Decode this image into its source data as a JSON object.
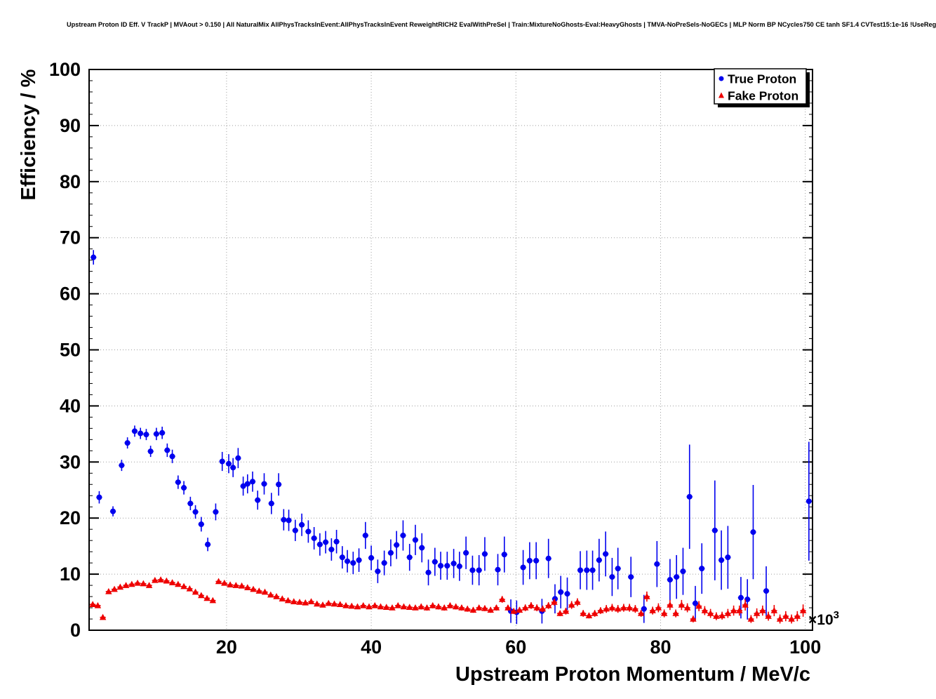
{
  "title": "Upstream Proton ID Eff. V TrackP | MVAout > 0.150 | All NaturalMix AllPhysTracksInEvent:AllPhysTracksInEvent ReweightRICH2 EvalWithPreSel | Train:MixtureNoGhosts-Eval:HeavyGhosts | TMVA-NoPreSels-NoGECs | MLP Norm BP NCycles750 CE tanh SF1.4 CVTest15:1e-16 !UseReg",
  "chart_data": {
    "type": "scatter",
    "title": "Upstream Proton ID Eff. V TrackP | MVAout > 0.150 | All NaturalMix AllPhysTracksInEvent:AllPhysTracksInEvent ReweightRICH2 EvalWithPreSel | Train:MixtureNoGhosts-Eval:HeavyGhosts | TMVA-NoPreSels-NoGECs | MLP Norm BP NCycles750 CE tanh SF1.4 CVTest15:1e-16 !UseReg",
    "xlabel": "Upstream Proton Momentum / MeV/c",
    "ylabel": "Efficiency / %",
    "x_multiplier": "×10",
    "x_multiplier_exponent": "3",
    "x_units_note": "x values in units of 10^3 MeV/c",
    "xlim": [
      1,
      101
    ],
    "ylim": [
      0,
      100
    ],
    "x_major_ticks": [
      20,
      40,
      60,
      80,
      100
    ],
    "x_mid_step": 10,
    "x_minor_step": 2,
    "y_major_ticks": [
      0,
      10,
      20,
      30,
      40,
      50,
      60,
      70,
      80,
      90,
      100
    ],
    "y_minor_step": 2,
    "grid": true,
    "grid_style": "dotted",
    "legend_position": "top-right",
    "frame_color": "#000000",
    "series": [
      {
        "name": "True Proton",
        "color": "#0000ee",
        "marker": "circle",
        "points": [
          [
            1.6,
            66.5,
            1.3
          ],
          [
            2.4,
            23.7,
            1.1
          ],
          [
            4.3,
            21.2,
            0.9
          ],
          [
            5.5,
            29.4,
            1.0
          ],
          [
            6.3,
            33.4,
            1.0
          ],
          [
            7.3,
            35.5,
            1.0
          ],
          [
            8.1,
            35.1,
            1.0
          ],
          [
            8.9,
            34.9,
            1.0
          ],
          [
            9.5,
            31.9,
            1.0
          ],
          [
            10.3,
            35.0,
            1.1
          ],
          [
            11.1,
            35.2,
            1.1
          ],
          [
            11.8,
            32.1,
            1.2
          ],
          [
            12.5,
            31.0,
            1.2
          ],
          [
            13.3,
            26.4,
            1.2
          ],
          [
            14.1,
            25.4,
            1.2
          ],
          [
            15.0,
            22.6,
            1.2
          ],
          [
            15.7,
            21.1,
            1.2
          ],
          [
            16.5,
            18.9,
            1.3
          ],
          [
            17.4,
            15.3,
            1.2
          ],
          [
            18.5,
            21.1,
            1.5
          ],
          [
            19.4,
            30.1,
            1.7
          ],
          [
            20.3,
            29.7,
            1.7
          ],
          [
            20.9,
            29.0,
            1.7
          ],
          [
            21.6,
            30.7,
            1.8
          ],
          [
            22.3,
            25.7,
            1.7
          ],
          [
            22.9,
            26.1,
            1.7
          ],
          [
            23.6,
            26.5,
            1.8
          ],
          [
            24.3,
            23.2,
            1.7
          ],
          [
            25.2,
            26.1,
            1.9
          ],
          [
            26.2,
            22.6,
            1.9
          ],
          [
            27.2,
            26.0,
            2.0
          ],
          [
            27.9,
            19.7,
            1.9
          ],
          [
            28.6,
            19.6,
            1.9
          ],
          [
            29.5,
            17.8,
            1.9
          ],
          [
            30.4,
            18.8,
            2.0
          ],
          [
            31.3,
            17.6,
            2.0
          ],
          [
            32.1,
            16.4,
            2.0
          ],
          [
            32.9,
            15.3,
            2.0
          ],
          [
            33.7,
            15.7,
            2.0
          ],
          [
            34.5,
            14.4,
            2.0
          ],
          [
            35.2,
            15.8,
            2.1
          ],
          [
            36.0,
            13.0,
            2.0
          ],
          [
            36.7,
            12.3,
            2.0
          ],
          [
            37.5,
            12.0,
            2.0
          ],
          [
            38.3,
            12.5,
            2.1
          ],
          [
            39.2,
            16.9,
            2.4
          ],
          [
            40.0,
            12.9,
            2.2
          ],
          [
            40.9,
            10.5,
            2.1
          ],
          [
            41.8,
            12.0,
            2.2
          ],
          [
            42.7,
            13.8,
            2.4
          ],
          [
            43.5,
            15.2,
            2.5
          ],
          [
            44.4,
            16.9,
            2.7
          ],
          [
            45.3,
            13.0,
            2.4
          ],
          [
            46.1,
            16.1,
            2.7
          ],
          [
            47.0,
            14.7,
            2.6
          ],
          [
            47.9,
            10.3,
            2.3
          ],
          [
            48.8,
            12.2,
            2.5
          ],
          [
            49.6,
            11.5,
            2.5
          ],
          [
            50.5,
            11.5,
            2.5
          ],
          [
            51.4,
            11.9,
            2.6
          ],
          [
            52.2,
            11.4,
            2.6
          ],
          [
            53.1,
            13.8,
            2.9
          ],
          [
            54.0,
            10.7,
            2.6
          ],
          [
            54.9,
            10.7,
            2.7
          ],
          [
            55.7,
            13.6,
            3.0
          ],
          [
            57.5,
            10.8,
            2.8
          ],
          [
            58.4,
            13.5,
            3.2
          ],
          [
            59.3,
            3.4,
            2.1
          ],
          [
            60.1,
            3.2,
            2.1
          ],
          [
            61.0,
            11.2,
            3.1
          ],
          [
            61.9,
            12.4,
            3.3
          ],
          [
            62.8,
            12.4,
            3.3
          ],
          [
            63.6,
            3.4,
            2.2
          ],
          [
            64.5,
            12.8,
            3.5
          ],
          [
            65.4,
            5.6,
            2.6
          ],
          [
            66.2,
            6.8,
            2.9
          ],
          [
            67.1,
            6.5,
            2.9
          ],
          [
            68.9,
            10.7,
            3.4
          ],
          [
            69.8,
            10.7,
            3.5
          ],
          [
            70.6,
            10.7,
            3.5
          ],
          [
            71.5,
            12.5,
            3.8
          ],
          [
            72.4,
            13.6,
            4.0
          ],
          [
            73.3,
            9.5,
            3.4
          ],
          [
            74.1,
            11.0,
            3.7
          ],
          [
            75.9,
            9.5,
            3.6
          ],
          [
            77.7,
            3.8,
            2.5
          ],
          [
            79.5,
            11.8,
            4.1
          ],
          [
            81.3,
            9.0,
            3.7
          ],
          [
            82.2,
            9.5,
            3.9
          ],
          [
            83.1,
            10.5,
            4.2
          ],
          [
            84.0,
            23.8,
            9.3
          ],
          [
            84.8,
            4.8,
            3.1
          ],
          [
            85.7,
            11.0,
            4.5
          ],
          [
            87.5,
            17.8,
            8.9
          ],
          [
            88.4,
            12.5,
            5.3
          ],
          [
            89.3,
            13.0,
            5.6
          ],
          [
            91.1,
            5.8,
            3.7
          ],
          [
            92.0,
            5.5,
            3.6
          ],
          [
            92.8,
            17.5,
            8.4
          ],
          [
            94.6,
            7.0,
            4.4
          ],
          [
            100.5,
            23.0,
            10.6
          ]
        ]
      },
      {
        "name": "Fake Proton",
        "color": "#ee0000",
        "marker": "triangle",
        "points": [
          [
            1.5,
            4.6,
            0.3
          ],
          [
            2.2,
            4.4,
            0.3
          ],
          [
            2.9,
            2.3,
            0.3
          ],
          [
            3.7,
            6.9,
            0.3
          ],
          [
            4.5,
            7.3,
            0.3
          ],
          [
            5.3,
            7.7,
            0.3
          ],
          [
            6.1,
            8.0,
            0.3
          ],
          [
            6.9,
            8.2,
            0.3
          ],
          [
            7.7,
            8.4,
            0.3
          ],
          [
            8.5,
            8.3,
            0.3
          ],
          [
            9.3,
            8.0,
            0.3
          ],
          [
            10.1,
            8.9,
            0.3
          ],
          [
            10.9,
            9.0,
            0.3
          ],
          [
            11.7,
            8.8,
            0.3
          ],
          [
            12.5,
            8.5,
            0.3
          ],
          [
            13.3,
            8.2,
            0.3
          ],
          [
            14.1,
            7.8,
            0.3
          ],
          [
            14.9,
            7.4,
            0.3
          ],
          [
            15.7,
            6.8,
            0.3
          ],
          [
            16.5,
            6.2,
            0.3
          ],
          [
            17.3,
            5.7,
            0.3
          ],
          [
            18.1,
            5.3,
            0.3
          ],
          [
            18.9,
            8.7,
            0.4
          ],
          [
            19.7,
            8.4,
            0.4
          ],
          [
            20.5,
            8.1,
            0.4
          ],
          [
            21.3,
            8.0,
            0.4
          ],
          [
            22.1,
            7.9,
            0.4
          ],
          [
            22.9,
            7.6,
            0.4
          ],
          [
            23.7,
            7.3,
            0.4
          ],
          [
            24.5,
            7.0,
            0.4
          ],
          [
            25.3,
            6.8,
            0.4
          ],
          [
            26.1,
            6.3,
            0.4
          ],
          [
            26.9,
            6.0,
            0.4
          ],
          [
            27.7,
            5.6,
            0.4
          ],
          [
            28.5,
            5.3,
            0.4
          ],
          [
            29.3,
            5.1,
            0.4
          ],
          [
            30.1,
            5.0,
            0.4
          ],
          [
            30.9,
            4.9,
            0.4
          ],
          [
            31.7,
            5.1,
            0.4
          ],
          [
            32.5,
            4.7,
            0.4
          ],
          [
            33.3,
            4.5,
            0.4
          ],
          [
            34.1,
            4.8,
            0.4
          ],
          [
            34.9,
            4.7,
            0.4
          ],
          [
            35.7,
            4.6,
            0.4
          ],
          [
            36.5,
            4.4,
            0.4
          ],
          [
            37.3,
            4.3,
            0.4
          ],
          [
            38.1,
            4.2,
            0.4
          ],
          [
            38.9,
            4.4,
            0.4
          ],
          [
            39.7,
            4.2,
            0.4
          ],
          [
            40.5,
            4.4,
            0.4
          ],
          [
            41.3,
            4.2,
            0.4
          ],
          [
            42.1,
            4.1,
            0.4
          ],
          [
            42.9,
            4.0,
            0.4
          ],
          [
            43.7,
            4.4,
            0.4
          ],
          [
            44.5,
            4.2,
            0.4
          ],
          [
            45.3,
            4.1,
            0.4
          ],
          [
            46.1,
            4.0,
            0.4
          ],
          [
            46.9,
            4.2,
            0.5
          ],
          [
            47.7,
            4.0,
            0.5
          ],
          [
            48.5,
            4.4,
            0.5
          ],
          [
            49.3,
            4.2,
            0.5
          ],
          [
            50.1,
            4.0,
            0.5
          ],
          [
            50.9,
            4.4,
            0.5
          ],
          [
            51.7,
            4.2,
            0.5
          ],
          [
            52.5,
            4.0,
            0.5
          ],
          [
            53.3,
            3.8,
            0.5
          ],
          [
            54.1,
            3.6,
            0.5
          ],
          [
            54.9,
            4.0,
            0.5
          ],
          [
            55.7,
            3.9,
            0.5
          ],
          [
            56.5,
            3.6,
            0.5
          ],
          [
            57.3,
            4.0,
            0.5
          ],
          [
            58.1,
            5.5,
            0.6
          ],
          [
            58.9,
            4.0,
            0.5
          ],
          [
            59.7,
            3.4,
            0.5
          ],
          [
            60.5,
            3.6,
            0.5
          ],
          [
            61.3,
            4.0,
            0.6
          ],
          [
            62.1,
            4.4,
            0.6
          ],
          [
            62.9,
            4.0,
            0.6
          ],
          [
            63.7,
            3.8,
            0.6
          ],
          [
            64.5,
            4.4,
            0.6
          ],
          [
            65.3,
            5.0,
            0.6
          ],
          [
            66.1,
            3.0,
            0.5
          ],
          [
            66.9,
            3.4,
            0.6
          ],
          [
            67.7,
            4.5,
            0.7
          ],
          [
            68.5,
            5.0,
            0.7
          ],
          [
            69.3,
            3.0,
            0.6
          ],
          [
            70.1,
            2.6,
            0.5
          ],
          [
            70.9,
            3.0,
            0.6
          ],
          [
            71.7,
            3.5,
            0.6
          ],
          [
            72.5,
            3.8,
            0.7
          ],
          [
            73.3,
            4.0,
            0.7
          ],
          [
            74.1,
            3.8,
            0.7
          ],
          [
            74.9,
            4.0,
            0.7
          ],
          [
            75.7,
            4.0,
            0.7
          ],
          [
            76.5,
            3.8,
            0.7
          ],
          [
            77.3,
            3.0,
            0.6
          ],
          [
            78.1,
            6.0,
            0.9
          ],
          [
            78.9,
            3.5,
            0.7
          ],
          [
            79.7,
            4.0,
            0.8
          ],
          [
            80.5,
            3.0,
            0.7
          ],
          [
            81.3,
            4.5,
            0.9
          ],
          [
            82.1,
            3.0,
            0.7
          ],
          [
            82.9,
            4.5,
            0.9
          ],
          [
            83.7,
            4.0,
            0.8
          ],
          [
            84.5,
            2.0,
            0.6
          ],
          [
            85.3,
            4.3,
            0.9
          ],
          [
            86.1,
            3.5,
            0.8
          ],
          [
            86.9,
            3.0,
            0.8
          ],
          [
            87.7,
            2.5,
            0.7
          ],
          [
            88.5,
            2.6,
            0.7
          ],
          [
            89.3,
            3.0,
            0.8
          ],
          [
            90.1,
            3.5,
            0.9
          ],
          [
            90.9,
            3.5,
            0.9
          ],
          [
            91.7,
            4.5,
            1.0
          ],
          [
            92.5,
            2.0,
            0.7
          ],
          [
            93.3,
            3.0,
            0.9
          ],
          [
            94.1,
            3.5,
            0.9
          ],
          [
            94.9,
            2.5,
            0.8
          ],
          [
            95.7,
            3.5,
            1.0
          ],
          [
            96.5,
            2.0,
            0.8
          ],
          [
            97.3,
            2.5,
            0.9
          ],
          [
            98.1,
            2.0,
            0.8
          ],
          [
            98.9,
            2.5,
            0.9
          ],
          [
            99.7,
            3.5,
            1.1
          ]
        ]
      }
    ]
  },
  "legend": {
    "entries": [
      {
        "label": "True Proton",
        "marker": "circle-icon",
        "color": "#0000ee"
      },
      {
        "label": "Fake Proton",
        "marker": "triangle-icon",
        "color": "#ee0000"
      }
    ]
  }
}
